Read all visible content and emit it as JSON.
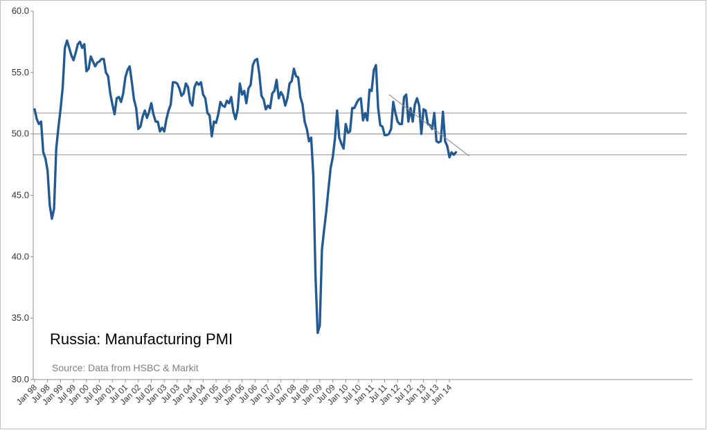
{
  "chart_data": {
    "type": "line",
    "title": "Russia: Manufacturing PMI",
    "source": "Source: Data from HSBC & Markit",
    "ylim": [
      30,
      60
    ],
    "yticks": [
      "30.0",
      "35.0",
      "40.0",
      "45.0",
      "50.0",
      "55.0",
      "60.0"
    ],
    "ytick_values": [
      30,
      35,
      40,
      45,
      50,
      55,
      60
    ],
    "xlim": [
      "1998-01",
      "2014-06"
    ],
    "xticks": [
      "Jan 98",
      "Jul 98",
      "Jan 99",
      "Jul 99",
      "Jan 00",
      "Jul 00",
      "Jan 01",
      "Jul 01",
      "Jan 02",
      "Jul 02",
      "Jan 03",
      "Jul 03",
      "Jan 04",
      "Jul 04",
      "Jan 05",
      "Jul 05",
      "Jan 06",
      "Jul 06",
      "Jan 07",
      "Jul 07",
      "Jan 08",
      "Jul 08",
      "Jan 09",
      "Jul 09",
      "Jan 10",
      "Jul 10",
      "Jan 11",
      "Jul 11",
      "Jan 12",
      "Jul 12",
      "Jan 13",
      "Jul 13",
      "Jan 14"
    ],
    "grid": false,
    "legend": "none",
    "reference_lines": [
      51.7,
      50.0,
      48.3
    ],
    "trend_line": {
      "start": [
        "2011-09",
        53.2
      ],
      "end": [
        "2014-07",
        48.3
      ]
    },
    "series_color": "#235a91",
    "series": [
      {
        "start": "1998-01",
        "values": [
          52.0,
          51.2,
          50.8,
          51.0,
          48.5,
          48.0,
          47.0,
          44.2,
          43.1,
          43.9,
          48.8,
          50.5,
          52.0,
          53.8,
          57.0,
          57.6,
          57.0,
          56.4,
          56.0,
          56.6,
          57.3,
          57.5,
          57.0,
          57.3,
          55.1,
          55.3,
          56.3,
          55.9,
          55.5,
          55.8,
          55.9,
          56.1,
          56.1,
          55.0,
          54.7,
          53.3,
          52.4,
          51.6,
          52.9,
          53.0,
          52.6,
          53.3,
          54.6,
          55.2,
          55.5,
          54.2,
          52.8,
          52.1,
          50.4,
          50.6,
          51.4,
          51.9,
          51.3,
          51.8,
          52.5,
          51.6,
          51.0,
          51.0,
          50.2,
          50.5,
          50.2,
          51.2,
          51.9,
          52.4,
          54.2,
          54.2,
          54.1,
          53.7,
          53.1,
          53.3,
          54.1,
          53.8,
          52.6,
          52.3,
          53.8,
          54.2,
          54.0,
          54.2,
          53.2,
          52.9,
          51.7,
          51.5,
          49.8,
          51.0,
          50.9,
          51.6,
          52.6,
          52.3,
          52.2,
          52.7,
          52.5,
          53.0,
          51.8,
          51.2,
          52.0,
          54.1,
          53.2,
          53.5,
          52.5,
          53.7,
          54.0,
          55.6,
          56.0,
          56.1,
          54.9,
          53.1,
          52.8,
          52.0,
          52.3,
          52.1,
          53.3,
          53.5,
          54.4,
          52.9,
          53.4,
          53.1,
          52.3,
          52.9,
          54.1,
          54.3,
          55.3,
          54.7,
          54.6,
          53.0,
          52.4,
          51.0,
          50.4,
          49.4,
          49.7,
          46.6,
          38.5,
          33.8,
          34.4,
          40.6,
          42.2,
          43.7,
          45.5,
          47.2,
          48.1,
          49.6,
          51.9,
          49.7,
          49.2,
          48.8,
          50.8,
          50.1,
          50.2,
          52.1,
          52.1,
          52.5,
          52.8,
          52.9,
          51.1,
          51.7,
          51.1,
          53.6,
          53.5,
          55.2,
          55.6,
          52.1,
          50.7,
          50.6,
          49.9,
          49.9,
          50.0,
          50.4,
          52.6,
          51.7,
          51.0,
          50.8,
          50.8,
          53.0,
          53.2,
          51.0,
          52.1,
          51.0,
          52.4,
          52.9,
          52.3,
          50.0,
          52.0,
          51.9,
          50.8,
          50.7,
          50.4,
          51.7,
          49.4,
          49.3,
          49.4,
          51.8,
          49.4,
          49.0,
          48.1,
          48.5,
          48.3,
          48.5
        ]
      }
    ]
  }
}
